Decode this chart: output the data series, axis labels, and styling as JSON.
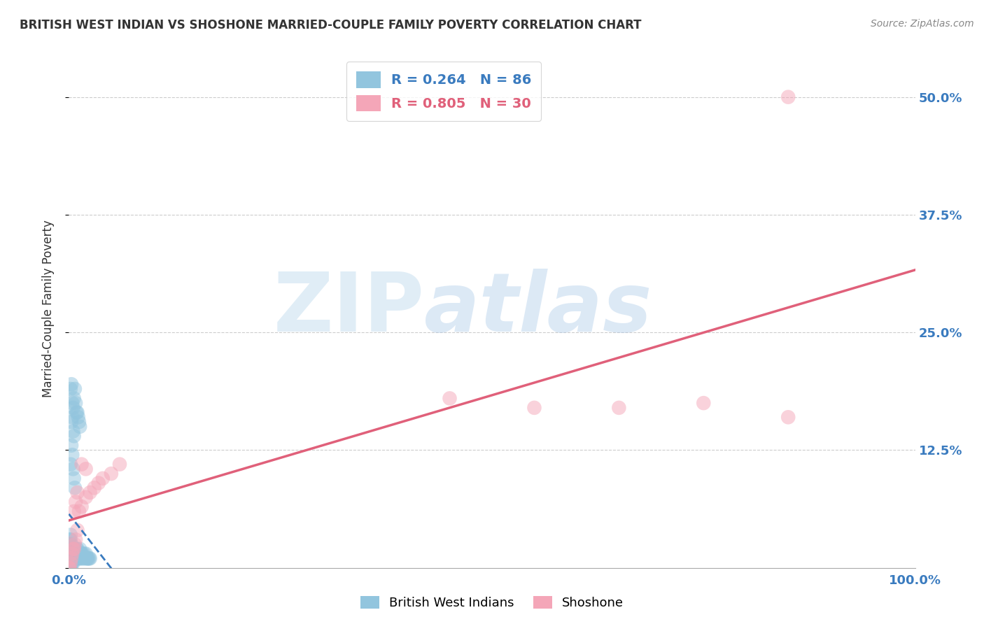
{
  "title": "BRITISH WEST INDIAN VS SHOSHONE MARRIED-COUPLE FAMILY POVERTY CORRELATION CHART",
  "source": "Source: ZipAtlas.com",
  "ylabel_label": "Married-Couple Family Poverty",
  "xlim": [
    0,
    1.0
  ],
  "ylim": [
    0,
    0.55
  ],
  "xticks": [
    0.0,
    0.25,
    0.5,
    0.75,
    1.0
  ],
  "xticklabels": [
    "0.0%",
    "",
    "",
    "",
    "100.0%"
  ],
  "yticks": [
    0.0,
    0.125,
    0.25,
    0.375,
    0.5
  ],
  "yticklabels": [
    "",
    "12.5%",
    "25.0%",
    "37.5%",
    "50.0%"
  ],
  "legend_labels": [
    "British West Indians",
    "Shoshone"
  ],
  "R_blue": 0.264,
  "N_blue": 86,
  "R_pink": 0.805,
  "N_pink": 30,
  "blue_color": "#92c5de",
  "pink_color": "#f4a6b8",
  "blue_line_color": "#3a7bbf",
  "pink_line_color": "#e0607a",
  "watermark_zip": "ZIP",
  "watermark_atlas": "atlas",
  "grid_color": "#cccccc",
  "axis_label_color": "#3a7bbf",
  "title_color": "#333333",
  "background_color": "#ffffff",
  "blue_scatter_x": [
    0.001,
    0.001,
    0.001,
    0.001,
    0.001,
    0.001,
    0.001,
    0.001,
    0.001,
    0.001,
    0.001,
    0.001,
    0.002,
    0.002,
    0.002,
    0.002,
    0.002,
    0.002,
    0.002,
    0.002,
    0.003,
    0.003,
    0.003,
    0.003,
    0.003,
    0.004,
    0.004,
    0.004,
    0.004,
    0.005,
    0.005,
    0.005,
    0.005,
    0.006,
    0.006,
    0.006,
    0.007,
    0.007,
    0.007,
    0.008,
    0.008,
    0.009,
    0.009,
    0.01,
    0.01,
    0.01,
    0.011,
    0.012,
    0.012,
    0.013,
    0.013,
    0.014,
    0.015,
    0.015,
    0.016,
    0.017,
    0.018,
    0.019,
    0.02,
    0.021,
    0.022,
    0.023,
    0.024,
    0.025,
    0.003,
    0.004,
    0.005,
    0.006,
    0.007,
    0.008,
    0.009,
    0.01,
    0.011,
    0.012,
    0.013,
    0.002,
    0.003,
    0.004,
    0.005,
    0.006,
    0.003,
    0.004,
    0.005,
    0.006,
    0.007,
    0.002
  ],
  "blue_scatter_y": [
    0.0,
    0.0,
    0.005,
    0.005,
    0.01,
    0.01,
    0.01,
    0.015,
    0.02,
    0.02,
    0.025,
    0.03,
    0.0,
    0.005,
    0.01,
    0.015,
    0.02,
    0.025,
    0.03,
    0.035,
    0.005,
    0.01,
    0.015,
    0.02,
    0.025,
    0.005,
    0.01,
    0.015,
    0.02,
    0.005,
    0.01,
    0.015,
    0.02,
    0.01,
    0.015,
    0.02,
    0.01,
    0.015,
    0.02,
    0.01,
    0.015,
    0.01,
    0.02,
    0.01,
    0.015,
    0.02,
    0.015,
    0.01,
    0.015,
    0.01,
    0.02,
    0.015,
    0.01,
    0.015,
    0.015,
    0.01,
    0.015,
    0.01,
    0.015,
    0.01,
    0.01,
    0.01,
    0.01,
    0.01,
    0.155,
    0.175,
    0.17,
    0.18,
    0.19,
    0.175,
    0.165,
    0.165,
    0.16,
    0.155,
    0.15,
    0.19,
    0.195,
    0.16,
    0.145,
    0.14,
    0.13,
    0.12,
    0.105,
    0.095,
    0.085,
    0.11
  ],
  "pink_scatter_x": [
    0.001,
    0.002,
    0.003,
    0.004,
    0.005,
    0.006,
    0.007,
    0.008,
    0.01,
    0.012,
    0.015,
    0.02,
    0.025,
    0.03,
    0.035,
    0.04,
    0.05,
    0.06,
    0.45,
    0.55,
    0.65,
    0.75,
    0.85,
    0.006,
    0.008,
    0.01,
    0.015,
    0.02,
    0.85,
    0.0
  ],
  "pink_scatter_y": [
    0.0,
    0.005,
    0.01,
    0.015,
    0.02,
    0.02,
    0.025,
    0.03,
    0.04,
    0.06,
    0.065,
    0.075,
    0.08,
    0.085,
    0.09,
    0.095,
    0.1,
    0.11,
    0.18,
    0.17,
    0.17,
    0.175,
    0.5,
    0.06,
    0.07,
    0.08,
    0.11,
    0.105,
    0.16,
    0.0
  ]
}
